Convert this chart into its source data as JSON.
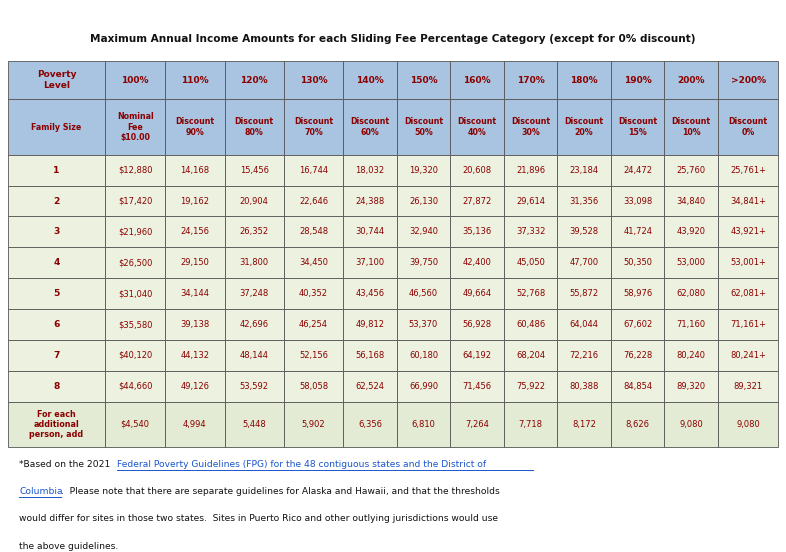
{
  "title": "Maximum Annual Income Amounts for each Sliding Fee Percentage Category (except for 0% discount)",
  "col_headers_row1": [
    "Poverty\nLevel",
    "100%",
    "110%",
    "120%",
    "130%",
    "140%",
    "150%",
    "160%",
    "170%",
    "180%",
    "190%",
    "200%",
    ">200%"
  ],
  "col_headers_row2": [
    "Family Size",
    "Nominal\nFee\n$10.00",
    "Discount\n90%",
    "Discount\n80%",
    "Discount\n70%",
    "Discount\n60%",
    "Discount\n50%",
    "Discount\n40%",
    "Discount\n30%",
    "Discount\n20%",
    "Discount\n15%",
    "Discount\n10%",
    "Discount\n0%"
  ],
  "rows": [
    [
      "1",
      "$12,880",
      "14,168",
      "15,456",
      "16,744",
      "18,032",
      "19,320",
      "20,608",
      "21,896",
      "23,184",
      "24,472",
      "25,760",
      "25,761+"
    ],
    [
      "2",
      "$17,420",
      "19,162",
      "20,904",
      "22,646",
      "24,388",
      "26,130",
      "27,872",
      "29,614",
      "31,356",
      "33,098",
      "34,840",
      "34,841+"
    ],
    [
      "3",
      "$21,960",
      "24,156",
      "26,352",
      "28,548",
      "30,744",
      "32,940",
      "35,136",
      "37,332",
      "39,528",
      "41,724",
      "43,920",
      "43,921+"
    ],
    [
      "4",
      "$26,500",
      "29,150",
      "31,800",
      "34,450",
      "37,100",
      "39,750",
      "42,400",
      "45,050",
      "47,700",
      "50,350",
      "53,000",
      "53,001+"
    ],
    [
      "5",
      "$31,040",
      "34,144",
      "37,248",
      "40,352",
      "43,456",
      "46,560",
      "49,664",
      "52,768",
      "55,872",
      "58,976",
      "62,080",
      "62,081+"
    ],
    [
      "6",
      "$35,580",
      "39,138",
      "42,696",
      "46,254",
      "49,812",
      "53,370",
      "56,928",
      "60,486",
      "64,044",
      "67,602",
      "71,160",
      "71,161+"
    ],
    [
      "7",
      "$40,120",
      "44,132",
      "48,144",
      "52,156",
      "56,168",
      "60,180",
      "64,192",
      "68,204",
      "72,216",
      "76,228",
      "80,240",
      "80,241+"
    ],
    [
      "8",
      "$44,660",
      "49,126",
      "53,592",
      "58,058",
      "62,524",
      "66,990",
      "71,456",
      "75,922",
      "80,388",
      "84,854",
      "89,320",
      "89,321"
    ],
    [
      "For each\nadditional\nperson, add",
      "$4,540",
      "4,994",
      "5,448",
      "5,902",
      "6,356",
      "6,810",
      "7,264",
      "7,718",
      "8,172",
      "8,626",
      "9,080",
      "9,080"
    ]
  ],
  "color_header_bg": "#a8c4e0",
  "color_row_bg": "#edf2e0",
  "color_last_row_bg": "#e4ebd4",
  "color_border": "#555555",
  "color_text_header": "#8B0000",
  "color_text_data": "#8B0000",
  "color_title": "#111111",
  "link_color": "#1a55cc",
  "plain_color": "#111111",
  "background_color": "#ffffff",
  "footnote_lines": [
    [
      {
        "text": "*Based on the 2021 ",
        "link": false
      },
      {
        "text": "Federal Poverty Guidelines (FPG) for the 48 contiguous states and the District of",
        "link": true
      }
    ],
    [
      {
        "text": "Columbia",
        "link": true
      },
      {
        "text": ".  Please note that there are separate guidelines for Alaska and Hawaii, and that the thresholds",
        "link": false
      }
    ],
    [
      {
        "text": "would differ for sites in those two states.  Sites in Puerto Rico and other outlying jurisdictions would use",
        "link": false
      }
    ],
    [
      {
        "text": "the above guidelines.",
        "link": false
      }
    ]
  ]
}
